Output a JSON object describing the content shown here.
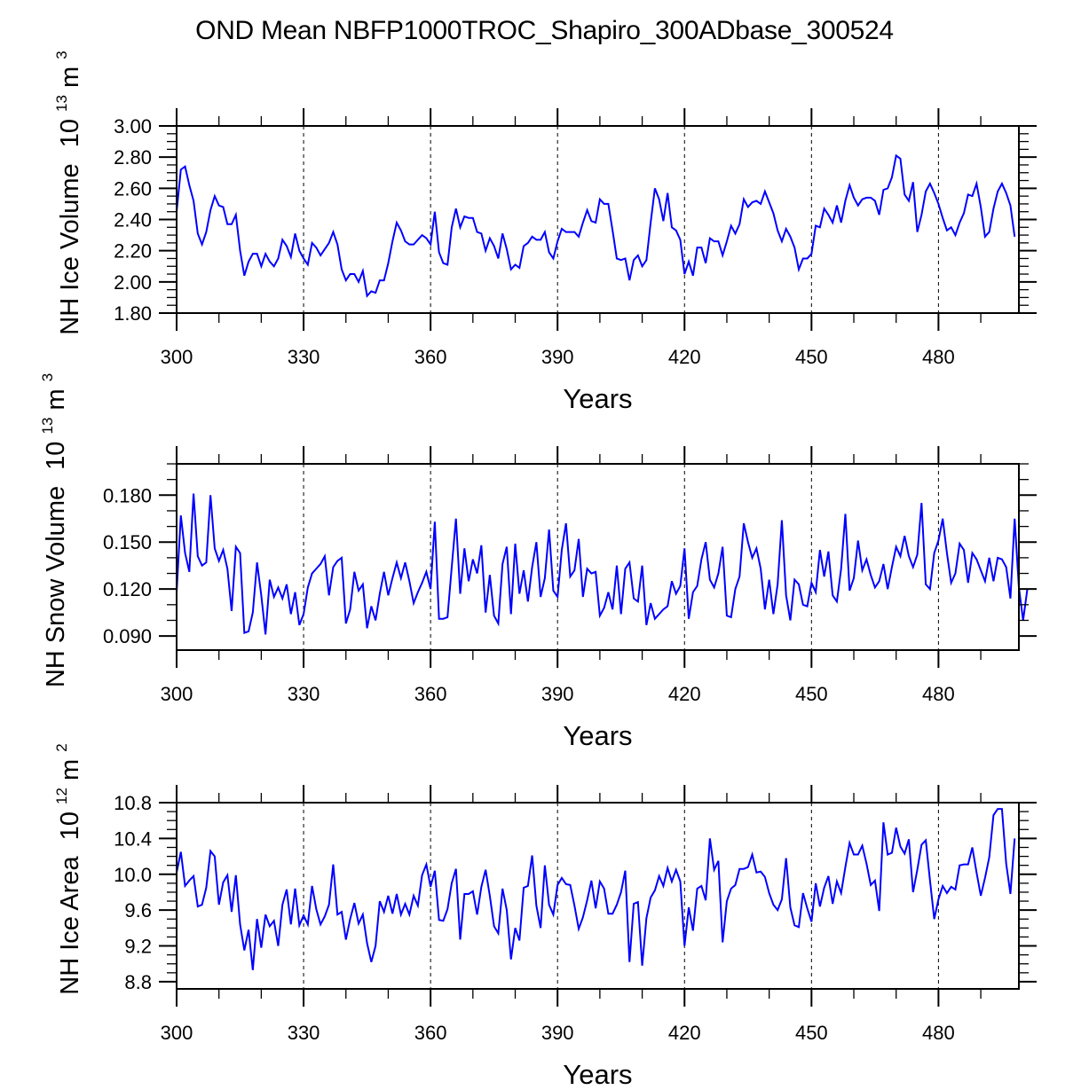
{
  "title": "OND Mean NBFP1000TROC_Shapiro_300ADbase_300524",
  "chart_data": [
    {
      "type": "line",
      "id": "ice-volume",
      "title": "",
      "xlabel": "Years",
      "ylabel": "NH Ice Volume",
      "ylabel_unit_base": "10",
      "ylabel_unit_exp": "13",
      "ylabel_unit_tail": " m",
      "ylabel_unit_tail_exp": "3",
      "xlim": [
        300,
        499
      ],
      "ylim": [
        1.8,
        3.0
      ],
      "xticks": [
        300,
        330,
        360,
        390,
        420,
        450,
        480
      ],
      "xtick_labels": [
        "300",
        "330",
        "360",
        "390",
        "420",
        "450",
        "480"
      ],
      "yticks": [
        1.8,
        2.0,
        2.2,
        2.4,
        2.6,
        2.8,
        3.0
      ],
      "ytick_labels": [
        "1.80",
        "2.00",
        "2.20",
        "2.40",
        "2.60",
        "2.80",
        "3.00"
      ],
      "y_minor_step": 0.05,
      "grid": "vertical dashed at major x ticks",
      "line_color": "#0000ff",
      "x_start": 300,
      "x_step": 1,
      "values": [
        2.45,
        2.72,
        2.74,
        2.62,
        2.52,
        2.31,
        2.24,
        2.32,
        2.46,
        2.55,
        2.49,
        2.48,
        2.37,
        2.37,
        2.43,
        2.2,
        2.04,
        2.13,
        2.18,
        2.18,
        2.1,
        2.18,
        2.13,
        2.1,
        2.15,
        2.27,
        2.23,
        2.16,
        2.31,
        2.2,
        2.15,
        2.11,
        2.25,
        2.22,
        2.17,
        2.21,
        2.25,
        2.32,
        2.24,
        2.08,
        2.01,
        2.05,
        2.05,
        2.0,
        2.07,
        1.91,
        1.94,
        1.93,
        2.01,
        2.01,
        2.12,
        2.26,
        2.38,
        2.33,
        2.26,
        2.24,
        2.24,
        2.27,
        2.3,
        2.28,
        2.24,
        2.45,
        2.19,
        2.12,
        2.11,
        2.35,
        2.47,
        2.35,
        2.42,
        2.41,
        2.41,
        2.32,
        2.31,
        2.2,
        2.28,
        2.23,
        2.15,
        2.31,
        2.21,
        2.08,
        2.11,
        2.09,
        2.23,
        2.25,
        2.29,
        2.27,
        2.27,
        2.32,
        2.19,
        2.15,
        2.26,
        2.34,
        2.32,
        2.32,
        2.32,
        2.29,
        2.38,
        2.46,
        2.39,
        2.38,
        2.53,
        2.5,
        2.5,
        2.33,
        2.15,
        2.14,
        2.15,
        2.01,
        2.14,
        2.17,
        2.1,
        2.14,
        2.38,
        2.6,
        2.53,
        2.39,
        2.57,
        2.35,
        2.33,
        2.27,
        2.05,
        2.13,
        2.04,
        2.22,
        2.22,
        2.12,
        2.28,
        2.26,
        2.26,
        2.17,
        2.26,
        2.36,
        2.31,
        2.37,
        2.53,
        2.48,
        2.51,
        2.52,
        2.5,
        2.58,
        2.51,
        2.44,
        2.33,
        2.26,
        2.34,
        2.29,
        2.22,
        2.08,
        2.15,
        2.15,
        2.18,
        2.36,
        2.35,
        2.47,
        2.43,
        2.38,
        2.49,
        2.38,
        2.52,
        2.62,
        2.54,
        2.49,
        2.53,
        2.54,
        2.54,
        2.52,
        2.43,
        2.59,
        2.6,
        2.67,
        2.81,
        2.79,
        2.56,
        2.52,
        2.64,
        2.32,
        2.43,
        2.58,
        2.63,
        2.57,
        2.5,
        2.41,
        2.33,
        2.35,
        2.3,
        2.38,
        2.44,
        2.56,
        2.55,
        2.63,
        2.48,
        2.29,
        2.32,
        2.47,
        2.58,
        2.63,
        2.57,
        2.49,
        2.29
      ]
    },
    {
      "type": "line",
      "id": "snow-volume",
      "title": "",
      "xlabel": "Years",
      "ylabel": "NH Snow Volume",
      "ylabel_unit_base": "10",
      "ylabel_unit_exp": "13",
      "ylabel_unit_tail": " m",
      "ylabel_unit_tail_exp": "3",
      "xlim": [
        300,
        499
      ],
      "ylim": [
        0.081,
        0.2
      ],
      "xticks": [
        300,
        330,
        360,
        390,
        420,
        450,
        480
      ],
      "xtick_labels": [
        "300",
        "330",
        "360",
        "390",
        "420",
        "450",
        "480"
      ],
      "yticks": [
        0.09,
        0.12,
        0.15,
        0.18
      ],
      "ytick_labels": [
        "0.090",
        "0.120",
        "0.150",
        "0.180"
      ],
      "y_minor_step": 0.01,
      "grid": "vertical dashed at major x ticks",
      "line_color": "#0000ff",
      "x_start": 300,
      "x_step": 1,
      "values": [
        0.118,
        0.167,
        0.143,
        0.131,
        0.181,
        0.141,
        0.135,
        0.137,
        0.18,
        0.146,
        0.138,
        0.145,
        0.133,
        0.106,
        0.147,
        0.143,
        0.092,
        0.093,
        0.105,
        0.137,
        0.116,
        0.091,
        0.126,
        0.115,
        0.121,
        0.114,
        0.123,
        0.104,
        0.118,
        0.097,
        0.104,
        0.121,
        0.13,
        0.133,
        0.136,
        0.141,
        0.116,
        0.134,
        0.138,
        0.14,
        0.098,
        0.107,
        0.131,
        0.119,
        0.123,
        0.095,
        0.109,
        0.1,
        0.117,
        0.131,
        0.116,
        0.127,
        0.137,
        0.127,
        0.137,
        0.125,
        0.111,
        0.118,
        0.124,
        0.131,
        0.12,
        0.163,
        0.101,
        0.101,
        0.102,
        0.134,
        0.165,
        0.117,
        0.146,
        0.125,
        0.139,
        0.13,
        0.148,
        0.105,
        0.129,
        0.103,
        0.098,
        0.136,
        0.147,
        0.104,
        0.149,
        0.117,
        0.132,
        0.112,
        0.134,
        0.15,
        0.115,
        0.127,
        0.158,
        0.119,
        0.115,
        0.145,
        0.162,
        0.128,
        0.132,
        0.152,
        0.115,
        0.133,
        0.13,
        0.131,
        0.103,
        0.108,
        0.118,
        0.107,
        0.135,
        0.104,
        0.133,
        0.137,
        0.114,
        0.112,
        0.135,
        0.097,
        0.111,
        0.101,
        0.104,
        0.107,
        0.109,
        0.125,
        0.117,
        0.122,
        0.146,
        0.101,
        0.118,
        0.122,
        0.139,
        0.15,
        0.126,
        0.121,
        0.13,
        0.147,
        0.103,
        0.102,
        0.12,
        0.128,
        0.162,
        0.15,
        0.14,
        0.146,
        0.133,
        0.107,
        0.126,
        0.104,
        0.123,
        0.164,
        0.116,
        0.1,
        0.126,
        0.123,
        0.11,
        0.109,
        0.124,
        0.118,
        0.145,
        0.128,
        0.144,
        0.116,
        0.112,
        0.133,
        0.168,
        0.119,
        0.127,
        0.151,
        0.132,
        0.139,
        0.129,
        0.121,
        0.125,
        0.136,
        0.12,
        0.134,
        0.147,
        0.141,
        0.154,
        0.141,
        0.134,
        0.142,
        0.175,
        0.123,
        0.12,
        0.143,
        0.151,
        0.165,
        0.143,
        0.124,
        0.13,
        0.149,
        0.145,
        0.124,
        0.143,
        0.139,
        0.132,
        0.125,
        0.14,
        0.125,
        0.14,
        0.139,
        0.134,
        0.114,
        0.165,
        0.121,
        0.1,
        0.12
      ]
    },
    {
      "type": "line",
      "id": "ice-area",
      "title": "",
      "xlabel": "Years",
      "ylabel": "NH Ice Area",
      "ylabel_unit_base": "10",
      "ylabel_unit_exp": "12",
      "ylabel_unit_tail": " m",
      "ylabel_unit_tail_exp": "2",
      "xlim": [
        300,
        499
      ],
      "ylim": [
        8.72,
        10.8
      ],
      "xticks": [
        300,
        330,
        360,
        390,
        420,
        450,
        480
      ],
      "xtick_labels": [
        "300",
        "330",
        "360",
        "390",
        "420",
        "450",
        "480"
      ],
      "yticks": [
        8.8,
        9.2,
        9.6,
        10.0,
        10.4,
        10.8
      ],
      "ytick_labels": [
        "8.8",
        "9.2",
        "9.6",
        "10.0",
        "10.4",
        "10.8"
      ],
      "y_minor_step": 0.1,
      "grid": "vertical dashed at major x ticks",
      "line_color": "#0000ff",
      "x_start": 300,
      "x_step": 1,
      "values": [
        10.02,
        10.25,
        9.87,
        9.93,
        9.98,
        9.64,
        9.66,
        9.85,
        10.26,
        10.2,
        9.66,
        9.91,
        9.99,
        9.58,
        9.99,
        9.44,
        9.15,
        9.38,
        8.93,
        9.5,
        9.18,
        9.55,
        9.42,
        9.48,
        9.2,
        9.66,
        9.83,
        9.44,
        9.84,
        9.43,
        9.54,
        9.44,
        9.87,
        9.61,
        9.44,
        9.53,
        9.66,
        10.11,
        9.55,
        9.58,
        9.27,
        9.5,
        9.68,
        9.45,
        9.55,
        9.23,
        9.02,
        9.2,
        9.7,
        9.58,
        9.76,
        9.56,
        9.78,
        9.55,
        9.67,
        9.55,
        9.76,
        9.65,
        9.99,
        10.11,
        9.86,
        10.04,
        9.49,
        9.48,
        9.61,
        9.9,
        10.06,
        9.27,
        9.78,
        9.78,
        9.81,
        9.55,
        9.86,
        10.05,
        9.76,
        9.42,
        9.34,
        9.84,
        9.6,
        9.05,
        9.4,
        9.26,
        9.85,
        9.87,
        10.21,
        9.65,
        9.4,
        10.1,
        9.66,
        9.55,
        9.88,
        9.96,
        9.89,
        9.88,
        9.65,
        9.39,
        9.52,
        9.71,
        9.93,
        9.62,
        9.92,
        9.84,
        9.56,
        9.56,
        9.66,
        9.8,
        10.04,
        9.02,
        9.67,
        9.69,
        8.98,
        9.51,
        9.74,
        9.82,
        9.98,
        9.87,
        10.07,
        9.92,
        10.05,
        9.92,
        9.2,
        9.63,
        9.37,
        9.84,
        9.87,
        9.71,
        10.4,
        10.05,
        10.15,
        9.24,
        9.7,
        9.84,
        9.88,
        10.06,
        10.06,
        10.08,
        10.22,
        10.02,
        10.03,
        9.97,
        9.79,
        9.66,
        9.6,
        9.72,
        10.18,
        9.63,
        9.43,
        9.41,
        9.79,
        9.62,
        9.47,
        9.9,
        9.64,
        9.85,
        9.98,
        9.67,
        9.92,
        9.79,
        10.08,
        10.35,
        10.22,
        10.22,
        10.32,
        10.12,
        9.88,
        9.93,
        9.59,
        10.58,
        10.22,
        10.24,
        10.52,
        10.31,
        10.23,
        10.39,
        9.8,
        10.05,
        10.33,
        10.38,
        9.93,
        9.5,
        9.72,
        9.87,
        9.79,
        9.86,
        9.83,
        10.1,
        10.11,
        10.11,
        10.3,
        10.02,
        9.76,
        9.96,
        10.19,
        10.66,
        10.73,
        10.73,
        10.12,
        9.78,
        10.4
      ]
    }
  ]
}
